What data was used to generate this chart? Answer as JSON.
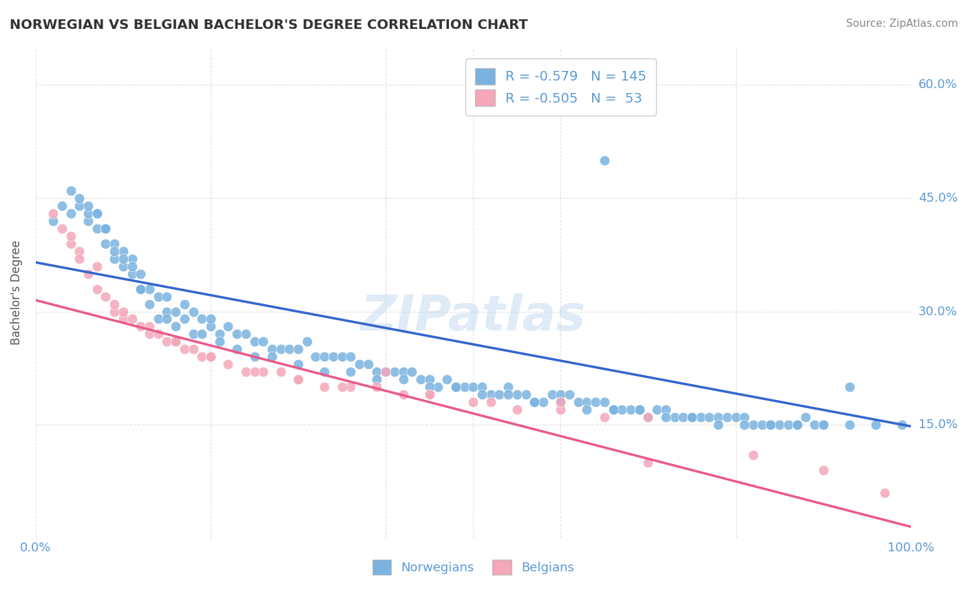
{
  "title": "NORWEGIAN VS BELGIAN BACHELOR'S DEGREE CORRELATION CHART",
  "source": "Source: ZipAtlas.com",
  "ylabel": "Bachelor's Degree",
  "watermark": "ZIPatlas",
  "xlim": [
    0,
    1.0
  ],
  "ylim": [
    0,
    0.65
  ],
  "ytick_positions": [
    0.15,
    0.3,
    0.45,
    0.6
  ],
  "ytick_labels": [
    "15.0%",
    "30.0%",
    "45.0%",
    "60.0%"
  ],
  "norwegian_color": "#7ab3e0",
  "belgian_color": "#f4a7b9",
  "norwegian_line_color": "#3366cc",
  "belgian_line_color": "#e85a8a",
  "legend_r_nor": "-0.579",
  "legend_n_nor": "145",
  "legend_r_bel": "-0.505",
  "legend_n_bel": " 53",
  "title_color": "#333333",
  "axis_color": "#5b9bd5",
  "background_color": "#ffffff",
  "grid_color": "#dddddd",
  "norwegian_scatter_x": [
    0.02,
    0.03,
    0.04,
    0.05,
    0.05,
    0.06,
    0.06,
    0.07,
    0.07,
    0.08,
    0.08,
    0.09,
    0.09,
    0.1,
    0.1,
    0.11,
    0.11,
    0.12,
    0.12,
    0.13,
    0.14,
    0.15,
    0.15,
    0.16,
    0.17,
    0.17,
    0.18,
    0.19,
    0.2,
    0.2,
    0.21,
    0.22,
    0.23,
    0.24,
    0.25,
    0.26,
    0.27,
    0.28,
    0.29,
    0.3,
    0.31,
    0.32,
    0.33,
    0.34,
    0.35,
    0.36,
    0.37,
    0.38,
    0.39,
    0.4,
    0.41,
    0.42,
    0.43,
    0.44,
    0.45,
    0.46,
    0.47,
    0.48,
    0.49,
    0.5,
    0.51,
    0.52,
    0.53,
    0.54,
    0.55,
    0.56,
    0.57,
    0.58,
    0.59,
    0.6,
    0.61,
    0.62,
    0.63,
    0.64,
    0.65,
    0.66,
    0.67,
    0.68,
    0.69,
    0.7,
    0.71,
    0.72,
    0.73,
    0.74,
    0.75,
    0.76,
    0.77,
    0.78,
    0.79,
    0.8,
    0.81,
    0.82,
    0.83,
    0.84,
    0.85,
    0.86,
    0.87,
    0.88,
    0.89,
    0.9,
    0.04,
    0.06,
    0.07,
    0.08,
    0.09,
    0.1,
    0.11,
    0.12,
    0.13,
    0.14,
    0.15,
    0.16,
    0.18,
    0.19,
    0.21,
    0.23,
    0.25,
    0.27,
    0.3,
    0.33,
    0.36,
    0.39,
    0.42,
    0.45,
    0.48,
    0.51,
    0.54,
    0.57,
    0.6,
    0.63,
    0.66,
    0.69,
    0.72,
    0.75,
    0.78,
    0.81,
    0.84,
    0.87,
    0.9,
    0.93,
    0.96,
    0.99,
    0.65,
    0.7,
    0.93
  ],
  "norwegian_scatter_y": [
    0.42,
    0.44,
    0.43,
    0.44,
    0.45,
    0.42,
    0.43,
    0.41,
    0.43,
    0.39,
    0.41,
    0.37,
    0.39,
    0.36,
    0.38,
    0.35,
    0.37,
    0.33,
    0.35,
    0.33,
    0.32,
    0.3,
    0.32,
    0.3,
    0.29,
    0.31,
    0.3,
    0.29,
    0.28,
    0.29,
    0.27,
    0.28,
    0.27,
    0.27,
    0.26,
    0.26,
    0.25,
    0.25,
    0.25,
    0.25,
    0.26,
    0.24,
    0.24,
    0.24,
    0.24,
    0.24,
    0.23,
    0.23,
    0.22,
    0.22,
    0.22,
    0.22,
    0.22,
    0.21,
    0.21,
    0.2,
    0.21,
    0.2,
    0.2,
    0.2,
    0.2,
    0.19,
    0.19,
    0.2,
    0.19,
    0.19,
    0.18,
    0.18,
    0.19,
    0.19,
    0.19,
    0.18,
    0.18,
    0.18,
    0.18,
    0.17,
    0.17,
    0.17,
    0.17,
    0.16,
    0.17,
    0.17,
    0.16,
    0.16,
    0.16,
    0.16,
    0.16,
    0.16,
    0.16,
    0.16,
    0.16,
    0.15,
    0.15,
    0.15,
    0.15,
    0.15,
    0.15,
    0.16,
    0.15,
    0.15,
    0.46,
    0.44,
    0.43,
    0.41,
    0.38,
    0.37,
    0.36,
    0.33,
    0.31,
    0.29,
    0.29,
    0.28,
    0.27,
    0.27,
    0.26,
    0.25,
    0.24,
    0.24,
    0.23,
    0.22,
    0.22,
    0.21,
    0.21,
    0.2,
    0.2,
    0.19,
    0.19,
    0.18,
    0.18,
    0.17,
    0.17,
    0.17,
    0.16,
    0.16,
    0.15,
    0.15,
    0.15,
    0.15,
    0.15,
    0.15,
    0.15,
    0.15,
    0.5,
    0.57,
    0.2
  ],
  "belgian_scatter_x": [
    0.02,
    0.03,
    0.04,
    0.05,
    0.05,
    0.06,
    0.07,
    0.08,
    0.09,
    0.09,
    0.1,
    0.11,
    0.12,
    0.13,
    0.14,
    0.15,
    0.16,
    0.17,
    0.18,
    0.19,
    0.2,
    0.22,
    0.24,
    0.26,
    0.28,
    0.3,
    0.33,
    0.36,
    0.39,
    0.42,
    0.45,
    0.5,
    0.55,
    0.6,
    0.65,
    0.7,
    0.04,
    0.07,
    0.1,
    0.13,
    0.16,
    0.2,
    0.25,
    0.3,
    0.35,
    0.4,
    0.45,
    0.52,
    0.6,
    0.7,
    0.82,
    0.9,
    0.97
  ],
  "belgian_scatter_y": [
    0.43,
    0.41,
    0.39,
    0.38,
    0.37,
    0.35,
    0.33,
    0.32,
    0.3,
    0.31,
    0.29,
    0.29,
    0.28,
    0.27,
    0.27,
    0.26,
    0.26,
    0.25,
    0.25,
    0.24,
    0.24,
    0.23,
    0.22,
    0.22,
    0.22,
    0.21,
    0.2,
    0.2,
    0.2,
    0.19,
    0.19,
    0.18,
    0.17,
    0.17,
    0.16,
    0.16,
    0.4,
    0.36,
    0.3,
    0.28,
    0.26,
    0.24,
    0.22,
    0.21,
    0.2,
    0.22,
    0.19,
    0.18,
    0.18,
    0.1,
    0.11,
    0.09,
    0.06
  ],
  "norwegian_trend_x": [
    0.0,
    1.0
  ],
  "norwegian_trend_y": [
    0.365,
    0.148
  ],
  "belgian_trend_x": [
    0.0,
    1.0
  ],
  "belgian_trend_y": [
    0.315,
    0.015
  ]
}
